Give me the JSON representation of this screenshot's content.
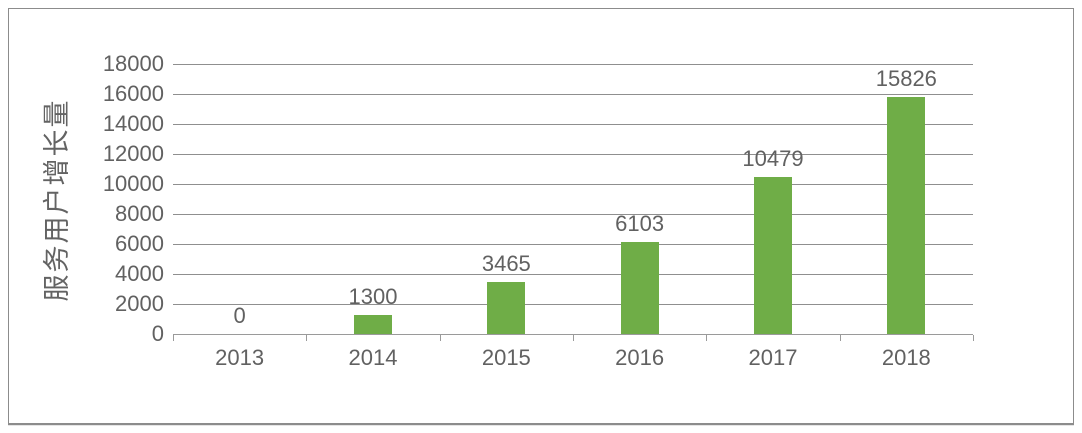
{
  "chart_data": {
    "type": "bar",
    "categories": [
      "2013",
      "2014",
      "2015",
      "2016",
      "2017",
      "2018"
    ],
    "values": [
      0,
      1300,
      3465,
      6103,
      10479,
      15826
    ],
    "data_labels": [
      "0",
      "1300",
      "3465",
      "6103",
      "10479",
      "15826"
    ],
    "title": "",
    "xlabel": "",
    "ylabel": "服务用户增长量",
    "ylim": [
      0,
      18000
    ],
    "ytick_step": 2000,
    "yticks": [
      "0",
      "2000",
      "4000",
      "6000",
      "8000",
      "10000",
      "12000",
      "14000",
      "16000",
      "18000"
    ],
    "grid": true,
    "legend": "none"
  },
  "colors": {
    "bar": "#6fad47",
    "text": "#616161",
    "gridline": "#8f8f8f",
    "axis": "#9a9a9a",
    "frame_border": "#8c8c8c",
    "background": "#ffffff"
  }
}
